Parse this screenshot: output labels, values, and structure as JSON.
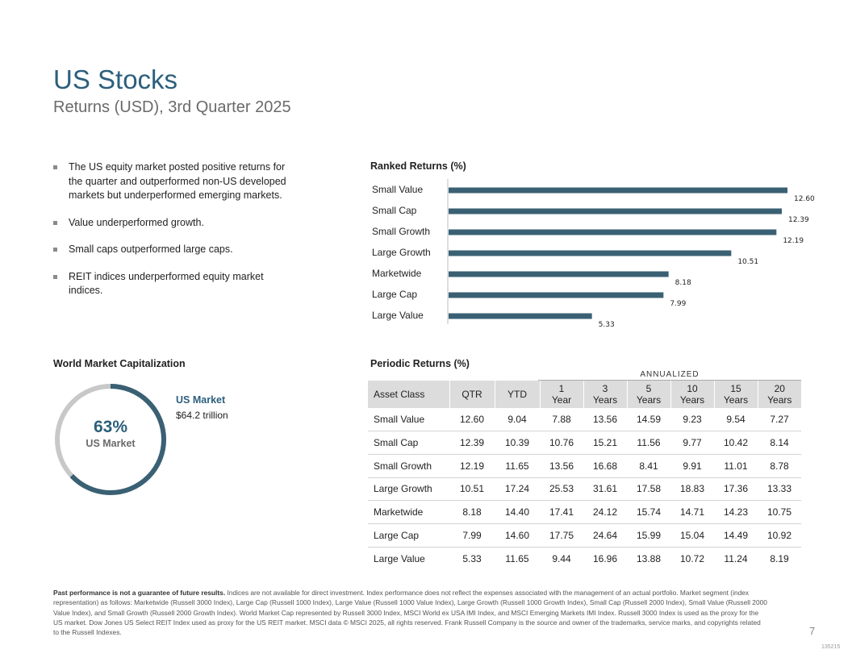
{
  "header": {
    "title": "US Stocks",
    "subtitle": "Returns (USD), 3rd Quarter 2025"
  },
  "bullets": [
    "The US equity market posted positive returns for the quarter and outperformed non-US developed markets but underperformed emerging markets.",
    "Value underperformed growth.",
    "Small caps outperformed large caps.",
    "REIT indices underperformed equity market indices."
  ],
  "ranked": {
    "title": "Ranked Returns (%)"
  },
  "chart_data": {
    "type": "bar",
    "orientation": "horizontal",
    "title": "Ranked Returns (%)",
    "categories": [
      "Small Value",
      "Small Cap",
      "Small Growth",
      "Large Growth",
      "Marketwide",
      "Large Cap",
      "Large Value"
    ],
    "values": [
      12.6,
      12.39,
      12.19,
      10.51,
      8.18,
      7.99,
      5.33
    ],
    "value_labels": [
      "12.60",
      "12.39",
      "12.19",
      "10.51",
      "8.18",
      "7.99",
      "5.33"
    ],
    "xlim": [
      0,
      13.5
    ],
    "bar_color": "#3a6073"
  },
  "world_cap": {
    "title": "World Market Capitalization",
    "percent": 63,
    "percent_label": "63%",
    "center_label": "US Market",
    "market_name": "US Market",
    "market_value": "$64.2 trillion",
    "fill_color": "#3a6073",
    "track_color": "#c8c8c8"
  },
  "periodic": {
    "title": "Periodic Returns (%)",
    "annualized_label": "ANNUALIZED",
    "headers": [
      {
        "line1": "Asset Class",
        "line2": ""
      },
      {
        "line1": "QTR",
        "line2": ""
      },
      {
        "line1": "YTD",
        "line2": ""
      },
      {
        "line1": "1",
        "line2": "Year"
      },
      {
        "line1": "3",
        "line2": "Years"
      },
      {
        "line1": "5",
        "line2": "Years"
      },
      {
        "line1": "10",
        "line2": "Years"
      },
      {
        "line1": "15",
        "line2": "Years"
      },
      {
        "line1": "20",
        "line2": "Years"
      }
    ],
    "rows": [
      [
        "Small Value",
        "12.60",
        "9.04",
        "7.88",
        "13.56",
        "14.59",
        "9.23",
        "9.54",
        "7.27"
      ],
      [
        "Small Cap",
        "12.39",
        "10.39",
        "10.76",
        "15.21",
        "11.56",
        "9.77",
        "10.42",
        "8.14"
      ],
      [
        "Small Growth",
        "12.19",
        "11.65",
        "13.56",
        "16.68",
        "8.41",
        "9.91",
        "11.01",
        "8.78"
      ],
      [
        "Large Growth",
        "10.51",
        "17.24",
        "25.53",
        "31.61",
        "17.58",
        "18.83",
        "17.36",
        "13.33"
      ],
      [
        "Marketwide",
        "8.18",
        "14.40",
        "17.41",
        "24.12",
        "15.74",
        "14.71",
        "14.23",
        "10.75"
      ],
      [
        "Large Cap",
        "7.99",
        "14.60",
        "17.75",
        "24.64",
        "15.99",
        "15.04",
        "14.49",
        "10.92"
      ],
      [
        "Large Value",
        "5.33",
        "11.65",
        "9.44",
        "16.96",
        "13.88",
        "10.72",
        "11.24",
        "8.19"
      ]
    ]
  },
  "footer": {
    "bold": "Past performance is not a guarantee of future results.",
    "text": " Indices are not available for direct investment. Index performance does not reflect the expenses associated with the management of an actual portfolio. Market segment (index representation) as follows: Marketwide (Russell 3000 Index), Large Cap (Russell 1000 Index), Large Value (Russell 1000 Value Index), Large Growth (Russell 1000 Growth Index), Small Cap (Russell 2000 Index), Small Value (Russell 2000 Value Index), and Small Growth (Russell 2000 Growth Index). World Market Cap represented by Russell 3000 Index, MSCI World ex USA IMI Index, and MSCI Emerging Markets IMI Index. Russell 3000 Index is used as the proxy for the US market. Dow Jones US Select REIT Index used as proxy for the US REIT market. MSCI data © MSCI 2025, all rights reserved. Frank Russell Company is the source and owner of the trademarks, service marks, and copyrights related to the Russell Indexes.",
    "page_number": "7",
    "doc_id": "135215"
  }
}
